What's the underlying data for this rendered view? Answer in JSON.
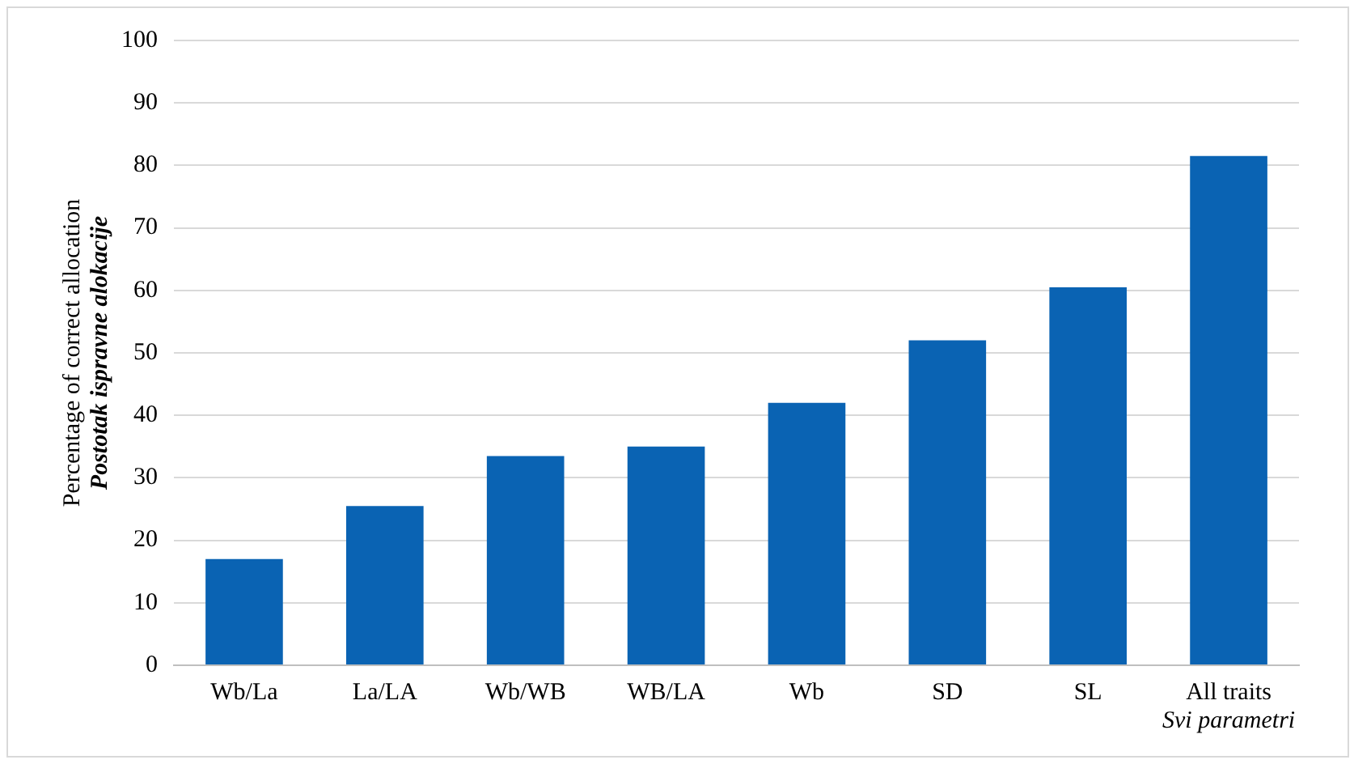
{
  "chart_data": {
    "type": "bar",
    "ylabel": "Percentage of correct allocation\nPostotak ispravne alokacije",
    "categories": [
      "Wb/La",
      "La/LA",
      "Wb/WB",
      "WB/LA",
      "Wb",
      "SD",
      "SL",
      "All traits\nSvi parametri"
    ],
    "values": [
      17,
      25.5,
      33.5,
      35,
      42,
      52,
      60.5,
      81.5
    ],
    "color": "#0a63b3",
    "ylim": [
      0,
      100
    ],
    "yticks": [
      0,
      10,
      20,
      30,
      40,
      50,
      60,
      70,
      80,
      90,
      100
    ],
    "grid": "y"
  }
}
